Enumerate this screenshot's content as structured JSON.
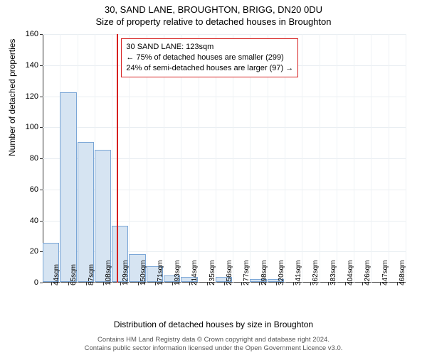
{
  "header": {
    "address": "30, SAND LANE, BROUGHTON, BRIGG, DN20 0DU",
    "subtitle": "Size of property relative to detached houses in Broughton"
  },
  "chart": {
    "type": "histogram",
    "ylabel": "Number of detached properties",
    "xlabel": "Distribution of detached houses by size in Broughton",
    "ylim": [
      0,
      160
    ],
    "ytick_step": 20,
    "yticks": [
      0,
      20,
      40,
      60,
      80,
      100,
      120,
      140,
      160
    ],
    "bar_fill": "#d6e4f2",
    "bar_border": "#7aa6d6",
    "grid_color": "#e9eef2",
    "axis_color": "#333333",
    "background": "#ffffff",
    "marker": {
      "color": "#d62020",
      "bin_index": 4,
      "position_in_bin": 0.3
    },
    "callout": {
      "line1": "30 SAND LANE: 123sqm",
      "line2": "← 75% of detached houses are smaller (299)",
      "line3": "24% of semi-detached houses are larger (97) →",
      "border_color": "#d62020"
    },
    "bins": [
      {
        "label": "44sqm",
        "value": 25
      },
      {
        "label": "65sqm",
        "value": 122
      },
      {
        "label": "87sqm",
        "value": 90
      },
      {
        "label": "108sqm",
        "value": 85
      },
      {
        "label": "129sqm",
        "value": 36
      },
      {
        "label": "150sqm",
        "value": 18
      },
      {
        "label": "171sqm",
        "value": 10
      },
      {
        "label": "193sqm",
        "value": 4
      },
      {
        "label": "214sqm",
        "value": 3
      },
      {
        "label": "235sqm",
        "value": 0
      },
      {
        "label": "256sqm",
        "value": 3
      },
      {
        "label": "277sqm",
        "value": 0
      },
      {
        "label": "298sqm",
        "value": 2
      },
      {
        "label": "320sqm",
        "value": 2
      },
      {
        "label": "341sqm",
        "value": 0
      },
      {
        "label": "362sqm",
        "value": 0
      },
      {
        "label": "383sqm",
        "value": 0
      },
      {
        "label": "404sqm",
        "value": 0
      },
      {
        "label": "426sqm",
        "value": 0
      },
      {
        "label": "447sqm",
        "value": 0
      },
      {
        "label": "468sqm",
        "value": 0
      }
    ]
  },
  "footer": {
    "line1": "Contains HM Land Registry data © Crown copyright and database right 2024.",
    "line2": "Contains public sector information licensed under the Open Government Licence v3.0."
  }
}
